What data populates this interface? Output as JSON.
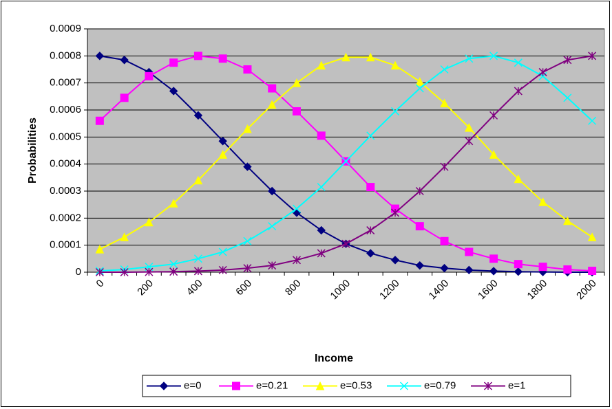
{
  "chart_data": {
    "type": "line",
    "x_label": "Income",
    "y_label": "Probabilities",
    "categories": [
      "0",
      null,
      "200",
      null,
      "400",
      null,
      "600",
      null,
      "800",
      null,
      "1000",
      null,
      "1200",
      null,
      "1400",
      null,
      "1600",
      null,
      "1800",
      null,
      "2000"
    ],
    "series": [
      {
        "name": "e=0",
        "color": "#000080",
        "marker": "diamond",
        "values": [
          0.0008,
          0.000785,
          0.00074,
          0.00067,
          0.00058,
          0.000485,
          0.00039,
          0.0003,
          0.00022,
          0.000155,
          0.000105,
          7e-05,
          4.5e-05,
          2.5e-05,
          1.5e-05,
          8e-06,
          4e-06,
          2e-06,
          1e-06,
          0,
          0
        ]
      },
      {
        "name": "e=0.21",
        "color": "#ff00ff",
        "marker": "square",
        "values": [
          0.00056,
          0.000645,
          0.000725,
          0.000775,
          0.0008,
          0.00079,
          0.00075,
          0.00068,
          0.000595,
          0.000505,
          0.00041,
          0.000315,
          0.000235,
          0.00017,
          0.000115,
          7.5e-05,
          5e-05,
          3e-05,
          2e-05,
          1e-05,
          5e-06
        ]
      },
      {
        "name": "e=0.53",
        "color": "#ffff00",
        "marker": "triangle",
        "values": [
          8.5e-05,
          0.00013,
          0.000185,
          0.000255,
          0.00034,
          0.000435,
          0.00053,
          0.00062,
          0.0007,
          0.000765,
          0.000795,
          0.000795,
          0.000765,
          0.000705,
          0.000625,
          0.000535,
          0.000435,
          0.000345,
          0.00026,
          0.00019,
          0.00013
        ]
      },
      {
        "name": "e=0.79",
        "color": "#00ffff",
        "marker": "x",
        "values": [
          5e-06,
          1e-05,
          2e-05,
          3e-05,
          5e-05,
          7.5e-05,
          0.000115,
          0.00017,
          0.000235,
          0.000315,
          0.00041,
          0.000505,
          0.000595,
          0.00068,
          0.00075,
          0.00079,
          0.0008,
          0.000775,
          0.000725,
          0.000645,
          0.00056
        ]
      },
      {
        "name": "e=1",
        "color": "#800080",
        "marker": "star",
        "values": [
          0,
          0,
          1e-06,
          2e-06,
          4e-06,
          8e-06,
          1.5e-05,
          2.5e-05,
          4.5e-05,
          7e-05,
          0.000105,
          0.000155,
          0.00022,
          0.0003,
          0.00039,
          0.000485,
          0.00058,
          0.00067,
          0.00074,
          0.000785,
          0.0008
        ]
      }
    ],
    "ylim": [
      0,
      0.0009
    ],
    "yticks": [
      0,
      0.0001,
      0.0002,
      0.0003,
      0.0004,
      0.0005,
      0.0006,
      0.0007,
      0.0008,
      0.0009
    ],
    "grid": true,
    "plot_background": "#c0c0c0",
    "legend": "bottom"
  }
}
